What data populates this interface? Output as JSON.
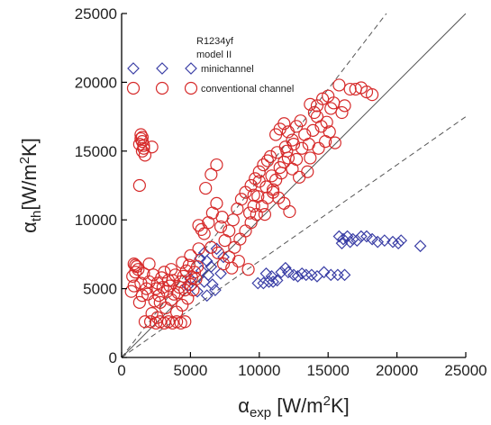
{
  "chart_data": {
    "type": "scatter",
    "xlim": [
      0,
      25000
    ],
    "ylim": [
      0,
      25000
    ],
    "xticks": [
      "0",
      "5000",
      "10000",
      "15000",
      "20000",
      "25000"
    ],
    "yticks": [
      "0",
      "5000",
      "10000",
      "15000",
      "20000",
      "25000"
    ],
    "xlabel": {
      "main": "α",
      "sub": "exp",
      "unit": " [W/m",
      "sup": "2",
      "end": "K]"
    },
    "ylabel": {
      "main": "α",
      "sub": "th",
      "unit": "[W/m",
      "sup": "2",
      "end": "K]"
    },
    "annotation": [
      "R1234yf",
      "model II"
    ],
    "reference_lines": [
      {
        "style": "solid",
        "slope": 1.0
      },
      {
        "style": "dashed",
        "slope": 1.3
      },
      {
        "style": "dashed",
        "slope": 0.7
      }
    ],
    "legend_position": "top-left",
    "colors": {
      "minichannel": "#3b3fa6",
      "conventional": "#d62a2a",
      "axis": "#000000",
      "reference": "#555555"
    },
    "series": [
      {
        "name": "minichannel",
        "marker": "diamond",
        "points": [
          [
            5700,
            7200
          ],
          [
            6000,
            7600
          ],
          [
            6200,
            7000
          ],
          [
            6500,
            6600
          ],
          [
            5800,
            6300
          ],
          [
            6300,
            6000
          ],
          [
            6000,
            5500
          ],
          [
            6600,
            5300
          ],
          [
            5500,
            4800
          ],
          [
            6200,
            4500
          ],
          [
            6800,
            4900
          ],
          [
            7200,
            6100
          ],
          [
            6900,
            7900
          ],
          [
            7400,
            7300
          ],
          [
            4800,
            5200
          ],
          [
            5000,
            5700
          ],
          [
            9900,
            5400
          ],
          [
            10300,
            5400
          ],
          [
            10700,
            5500
          ],
          [
            11000,
            5500
          ],
          [
            11300,
            5600
          ],
          [
            11600,
            6200
          ],
          [
            11900,
            6500
          ],
          [
            12100,
            6200
          ],
          [
            12500,
            6000
          ],
          [
            12800,
            5900
          ],
          [
            13100,
            6100
          ],
          [
            13400,
            6000
          ],
          [
            13800,
            6000
          ],
          [
            14200,
            5900
          ],
          [
            14700,
            6200
          ],
          [
            15200,
            6000
          ],
          [
            15700,
            6000
          ],
          [
            16200,
            6000
          ],
          [
            10500,
            6100
          ],
          [
            10900,
            5900
          ],
          [
            15800,
            8800
          ],
          [
            16100,
            8600
          ],
          [
            16400,
            8800
          ],
          [
            16800,
            8600
          ],
          [
            17100,
            8500
          ],
          [
            17400,
            8800
          ],
          [
            17800,
            8800
          ],
          [
            18200,
            8600
          ],
          [
            18600,
            8400
          ],
          [
            19100,
            8500
          ],
          [
            19700,
            8400
          ],
          [
            20100,
            8300
          ],
          [
            20300,
            8500
          ],
          [
            21700,
            8100
          ],
          [
            16000,
            8300
          ],
          [
            16600,
            8400
          ]
        ]
      },
      {
        "name": "conventional channel",
        "marker": "circle",
        "points": [
          [
            900,
            6800
          ],
          [
            1100,
            6600
          ],
          [
            1000,
            6200
          ],
          [
            800,
            5900
          ],
          [
            1200,
            6400
          ],
          [
            900,
            5200
          ],
          [
            700,
            4800
          ],
          [
            1400,
            5400
          ],
          [
            1000,
            6700
          ],
          [
            1400,
            16200
          ],
          [
            1500,
            16000
          ],
          [
            1500,
            15700
          ],
          [
            1600,
            15400
          ],
          [
            1400,
            15900
          ],
          [
            1300,
            15500
          ],
          [
            1600,
            15200
          ],
          [
            1500,
            15000
          ],
          [
            1700,
            14700
          ],
          [
            1300,
            12500
          ],
          [
            2200,
            15300
          ],
          [
            1700,
            2600
          ],
          [
            2100,
            2600
          ],
          [
            2500,
            2500
          ],
          [
            2800,
            2600
          ],
          [
            3100,
            2500
          ],
          [
            3400,
            2600
          ],
          [
            3700,
            2500
          ],
          [
            4000,
            2600
          ],
          [
            4300,
            2500
          ],
          [
            4600,
            2600
          ],
          [
            2200,
            3200
          ],
          [
            2600,
            2900
          ],
          [
            1300,
            4000
          ],
          [
            1500,
            4500
          ],
          [
            1800,
            5000
          ],
          [
            2000,
            5500
          ],
          [
            2300,
            6000
          ],
          [
            2500,
            5000
          ],
          [
            2700,
            4500
          ],
          [
            2900,
            5800
          ],
          [
            3100,
            6200
          ],
          [
            3300,
            4800
          ],
          [
            3500,
            5200
          ],
          [
            3700,
            5600
          ],
          [
            3900,
            6000
          ],
          [
            4100,
            4700
          ],
          [
            4300,
            5500
          ],
          [
            4500,
            5900
          ],
          [
            4700,
            6300
          ],
          [
            4900,
            6700
          ],
          [
            5100,
            5800
          ],
          [
            5300,
            6200
          ],
          [
            5500,
            6600
          ],
          [
            2000,
            6800
          ],
          [
            1600,
            6100
          ],
          [
            2800,
            4000
          ],
          [
            3200,
            3600
          ],
          [
            3600,
            4200
          ],
          [
            4000,
            3300
          ],
          [
            4400,
            3800
          ],
          [
            4800,
            4300
          ],
          [
            5200,
            4900
          ],
          [
            1900,
            4600
          ],
          [
            2400,
            4100
          ],
          [
            3000,
            5100
          ],
          [
            3400,
            5600
          ],
          [
            3800,
            4600
          ],
          [
            4200,
            5100
          ],
          [
            4600,
            4900
          ],
          [
            5000,
            5300
          ],
          [
            5400,
            5700
          ],
          [
            2600,
            5400
          ],
          [
            3600,
            6400
          ],
          [
            4400,
            6900
          ],
          [
            5000,
            7400
          ],
          [
            5600,
            7900
          ],
          [
            6000,
            9000
          ],
          [
            6300,
            9800
          ],
          [
            6600,
            10500
          ],
          [
            6900,
            11200
          ],
          [
            7200,
            9500
          ],
          [
            7500,
            8500
          ],
          [
            7800,
            9200
          ],
          [
            8100,
            10000
          ],
          [
            8400,
            10800
          ],
          [
            8700,
            11500
          ],
          [
            9000,
            12000
          ],
          [
            9300,
            10500
          ],
          [
            9600,
            11000
          ],
          [
            9900,
            11700
          ],
          [
            6500,
            8000
          ],
          [
            7000,
            7600
          ],
          [
            7400,
            6800
          ],
          [
            7800,
            7300
          ],
          [
            8200,
            8000
          ],
          [
            8600,
            8600
          ],
          [
            9000,
            9200
          ],
          [
            9400,
            9800
          ],
          [
            9800,
            10400
          ],
          [
            10200,
            11000
          ],
          [
            10600,
            11600
          ],
          [
            11000,
            12200
          ],
          [
            5800,
            9300
          ],
          [
            6100,
            12300
          ],
          [
            6500,
            13300
          ],
          [
            6900,
            14000
          ],
          [
            7300,
            10200
          ],
          [
            5600,
            9600
          ],
          [
            8000,
            6500
          ],
          [
            8500,
            7000
          ],
          [
            9200,
            6400
          ],
          [
            9400,
            12500
          ],
          [
            9700,
            13000
          ],
          [
            10000,
            13500
          ],
          [
            10300,
            14000
          ],
          [
            10600,
            14300
          ],
          [
            10900,
            13200
          ],
          [
            11200,
            12900
          ],
          [
            11500,
            13800
          ],
          [
            11800,
            14200
          ],
          [
            12100,
            14500
          ],
          [
            12400,
            13700
          ],
          [
            12700,
            14400
          ],
          [
            10000,
            12800
          ],
          [
            10500,
            12400
          ],
          [
            11000,
            12000
          ],
          [
            11400,
            11600
          ],
          [
            11800,
            11200
          ],
          [
            12200,
            10600
          ],
          [
            9600,
            11800
          ],
          [
            10400,
            10400
          ],
          [
            11600,
            13400
          ],
          [
            12900,
            13100
          ],
          [
            10800,
            14600
          ],
          [
            11300,
            14900
          ],
          [
            11900,
            15300
          ],
          [
            11200,
            16200
          ],
          [
            11500,
            16600
          ],
          [
            11800,
            17000
          ],
          [
            12100,
            16400
          ],
          [
            12400,
            15800
          ],
          [
            12700,
            16800
          ],
          [
            13000,
            17200
          ],
          [
            13300,
            16200
          ],
          [
            13600,
            15500
          ],
          [
            13900,
            16500
          ],
          [
            14200,
            17500
          ],
          [
            14500,
            16800
          ],
          [
            14800,
            15700
          ],
          [
            15100,
            16400
          ],
          [
            12000,
            15000
          ],
          [
            12500,
            15500
          ],
          [
            13100,
            15200
          ],
          [
            13700,
            14500
          ],
          [
            14300,
            15200
          ],
          [
            14900,
            17100
          ],
          [
            15500,
            15600
          ],
          [
            13500,
            13500
          ],
          [
            14200,
            18300
          ],
          [
            14600,
            18800
          ],
          [
            15000,
            19000
          ],
          [
            15400,
            18500
          ],
          [
            15800,
            19800
          ],
          [
            16200,
            18300
          ],
          [
            16600,
            19500
          ],
          [
            17000,
            19500
          ],
          [
            17400,
            19600
          ],
          [
            17800,
            19300
          ],
          [
            18200,
            19100
          ],
          [
            15200,
            18100
          ],
          [
            14000,
            17800
          ],
          [
            13700,
            18400
          ],
          [
            16000,
            17800
          ]
        ]
      }
    ]
  }
}
